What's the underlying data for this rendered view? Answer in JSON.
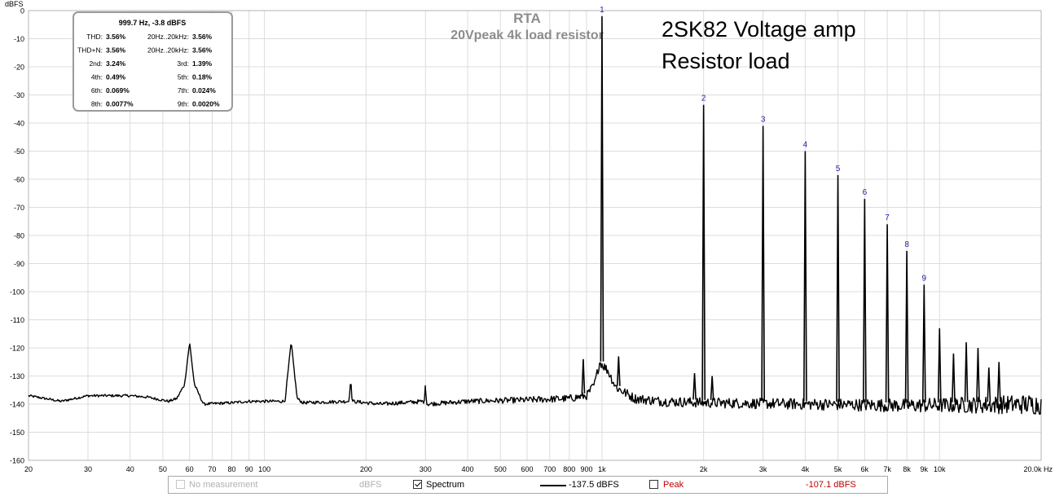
{
  "chart_data": {
    "type": "line",
    "title": "RTA",
    "subtitle": "20Vpeak 4k load resistor",
    "annotation": [
      "2SK82 Voltage amp",
      "Resistor load"
    ],
    "ylabel": "dBFS",
    "xunit": "Hz",
    "xscale": "log",
    "xlim": [
      20,
      20000
    ],
    "ylim": [
      -160,
      0
    ],
    "grid": true,
    "y_ticks": [
      "0",
      "-10",
      "-20",
      "-30",
      "-40",
      "-50",
      "-60",
      "-70",
      "-80",
      "-90",
      "-100",
      "-110",
      "-120",
      "-130",
      "-140",
      "-150",
      "-160"
    ],
    "x_ticks": [
      "20",
      "30",
      "40",
      "50",
      "60",
      "70",
      "80",
      "90",
      "100",
      "200",
      "300",
      "400",
      "500",
      "600",
      "700",
      "800",
      "900",
      "1k",
      "2k",
      "3k",
      "4k",
      "5k",
      "6k",
      "7k",
      "8k",
      "9k",
      "10k",
      "20.0k Hz"
    ],
    "line_color": "#000000",
    "noise_floor": [
      [
        20,
        -137
      ],
      [
        25,
        -139
      ],
      [
        30,
        -137
      ],
      [
        40,
        -137
      ],
      [
        45,
        -137.5
      ],
      [
        52,
        -139
      ],
      [
        55,
        -138
      ],
      [
        58,
        -133
      ],
      [
        60,
        -118
      ],
      [
        62,
        -133
      ],
      [
        66,
        -140
      ],
      [
        80,
        -139.5
      ],
      [
        90,
        -139
      ],
      [
        100,
        -139
      ],
      [
        115,
        -139
      ],
      [
        120,
        -118
      ],
      [
        125,
        -138
      ],
      [
        130,
        -139.5
      ],
      [
        178,
        -139
      ],
      [
        180,
        -131
      ],
      [
        182,
        -139
      ],
      [
        200,
        -139.5
      ],
      [
        220,
        -140
      ],
      [
        298,
        -139
      ],
      [
        300,
        -131
      ],
      [
        302,
        -140
      ],
      [
        400,
        -139
      ],
      [
        600,
        -138.5
      ],
      [
        800,
        -138
      ],
      [
        900,
        -137
      ],
      [
        950,
        -133
      ],
      [
        985,
        -125
      ],
      [
        1040,
        -128
      ],
      [
        1100,
        -134
      ],
      [
        1250,
        -138
      ],
      [
        1500,
        -139
      ],
      [
        2000,
        -139.5
      ],
      [
        4000,
        -140
      ],
      [
        8000,
        -140.5
      ],
      [
        20000,
        -140
      ]
    ],
    "peaks": [
      {
        "freq": 880,
        "db": -124
      },
      {
        "freq": 1000,
        "db": -2
      },
      {
        "freq": 1120,
        "db": -123
      },
      {
        "freq": 1880,
        "db": -129
      },
      {
        "freq": 2000,
        "db": -33.5
      },
      {
        "freq": 2120,
        "db": -130
      },
      {
        "freq": 3000,
        "db": -41
      },
      {
        "freq": 4000,
        "db": -50
      },
      {
        "freq": 5000,
        "db": -58.5
      },
      {
        "freq": 6000,
        "db": -67
      },
      {
        "freq": 7000,
        "db": -76
      },
      {
        "freq": 8000,
        "db": -85.5
      },
      {
        "freq": 9000,
        "db": -97.5
      },
      {
        "freq": 10000,
        "db": -113
      },
      {
        "freq": 11000,
        "db": -122
      },
      {
        "freq": 12000,
        "db": -118
      },
      {
        "freq": 13000,
        "db": -120
      },
      {
        "freq": 14000,
        "db": -127
      },
      {
        "freq": 15000,
        "db": -125
      }
    ],
    "harmonic_markers": [
      {
        "label": "1",
        "freq": 1000,
        "db": -2
      },
      {
        "label": "2",
        "freq": 2000,
        "db": -33.5
      },
      {
        "label": "3",
        "freq": 3000,
        "db": -41
      },
      {
        "label": "4",
        "freq": 4000,
        "db": -50
      },
      {
        "label": "5",
        "freq": 5000,
        "db": -58.5
      },
      {
        "label": "6",
        "freq": 6000,
        "db": -67
      },
      {
        "label": "7",
        "freq": 7000,
        "db": -76
      },
      {
        "label": "8",
        "freq": 8000,
        "db": -85.5
      },
      {
        "label": "9",
        "freq": 9000,
        "db": -97.5
      }
    ]
  },
  "distortion_box": {
    "heading": "999.7 Hz, -3.8 dBFS",
    "rows": [
      [
        {
          "label": "THD:",
          "value": "3.56%"
        },
        {
          "label": "20Hz..20kHz:",
          "value": "3.56%"
        }
      ],
      [
        {
          "label": "THD+N:",
          "value": "3.56%"
        },
        {
          "label": "20Hz..20kHz:",
          "value": "3.56%"
        }
      ],
      [
        {
          "label": "2nd:",
          "value": "3.24%"
        },
        {
          "label": "3rd:",
          "value": "1.39%"
        }
      ],
      [
        {
          "label": "4th:",
          "value": "0.49%"
        },
        {
          "label": "5th:",
          "value": "0.18%"
        }
      ],
      [
        {
          "label": "6th:",
          "value": "0.069%"
        },
        {
          "label": "7th:",
          "value": "0.024%"
        }
      ],
      [
        {
          "label": "8th:",
          "value": "0.0077%"
        },
        {
          "label": "9th:",
          "value": "0.0020%"
        }
      ]
    ]
  },
  "legend": {
    "no_measurement": "No measurement",
    "unit": "dBFS",
    "spectrum_label": "Spectrum",
    "spectrum_checked": true,
    "spectrum_value": "-137.5 dBFS",
    "peak_label": "Peak",
    "peak_checked": false,
    "peak_value": "-107.1 dBFS",
    "peak_color": "#c00000"
  },
  "colors": {
    "grid": "#dcdcdc",
    "marker_label": "#1f1fa8",
    "title": "#8c8c8c"
  }
}
